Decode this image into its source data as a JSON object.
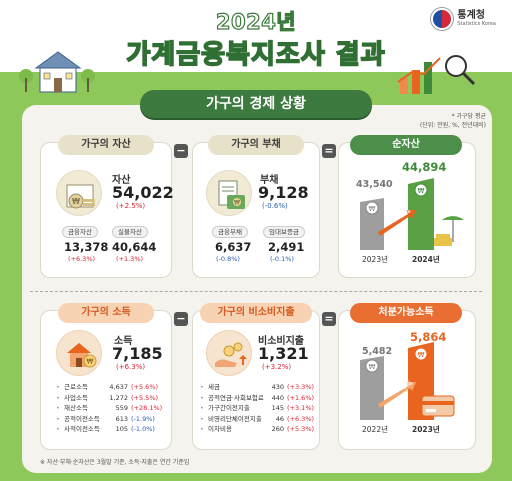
{
  "header": {
    "year": "2024년",
    "title": "가계금융복지조사 결과",
    "logo_text": "통계청",
    "logo_sub": "Statistics Korea"
  },
  "section": {
    "title": "가구의 경제 상황",
    "note_line1": "* 가구당 평균",
    "note_line2": "(단위: 만원, %, 전년대비)"
  },
  "assets": {
    "pill": "가구의 자산",
    "label": "자산",
    "value": "54,022",
    "change": "(+2.5%)",
    "sub": [
      {
        "tag": "금융자산",
        "value": "13,378",
        "change": "(+6.3%)"
      },
      {
        "tag": "실물자산",
        "value": "40,644",
        "change": "(+1.3%)"
      }
    ]
  },
  "debt": {
    "pill": "가구의 부채",
    "label": "부채",
    "value": "9,128",
    "change": "(-0.6%)",
    "sub": [
      {
        "tag": "금융부채",
        "value": "6,637",
        "change": "(-0.8%)"
      },
      {
        "tag": "임대보증금",
        "value": "2,491",
        "change": "(-0.1%)"
      }
    ]
  },
  "net_assets": {
    "pill": "순자산",
    "prev_value": "43,540",
    "curr_value": "44,894",
    "change_badge": "+3.1%",
    "prev_year": "2023년",
    "curr_year": "2024년"
  },
  "income": {
    "pill": "가구의 소득",
    "label": "소득",
    "value": "7,185",
    "change": "(+6.3%)",
    "items": [
      {
        "name": "근로소득",
        "value": "4,637",
        "change": "(+5.6%)"
      },
      {
        "name": "사업소득",
        "value": "1,272",
        "change": "(+5.5%)"
      },
      {
        "name": "재산소득",
        "value": "559",
        "change": "(+28.1%)"
      },
      {
        "name": "공적이전소득",
        "value": "613",
        "change": "(-1.9%)"
      },
      {
        "name": "사적이전소득",
        "value": "105",
        "change": "(-1.0%)"
      }
    ]
  },
  "nonconsumption": {
    "pill": "가구의 비소비지출",
    "label": "비소비지출",
    "value": "1,321",
    "change": "(+3.2%)",
    "items": [
      {
        "name": "세금",
        "value": "430",
        "change": "(+3.3%)"
      },
      {
        "name": "공적연금·사회보험료",
        "value": "440",
        "change": "(+1.6%)"
      },
      {
        "name": "가구간이전지출",
        "value": "145",
        "change": "(+3.1%)"
      },
      {
        "name": "비영리단체이전지출",
        "value": "46",
        "change": "(+6.3%)"
      },
      {
        "name": "이자비용",
        "value": "260",
        "change": "(+5.3%)"
      }
    ]
  },
  "disposable": {
    "pill": "처분가능소득",
    "prev_value": "5,482",
    "curr_value": "5,864",
    "change_badge": "+7.0%",
    "prev_year": "2022년",
    "curr_year": "2023년"
  },
  "operators": {
    "minus": "−",
    "equals": "="
  },
  "footnote": "※ 자산·부채·순자산은 3월말 기준, 소득·지출은 연간 기준임",
  "colors": {
    "accent_green": "#3d7a3f",
    "accent_orange": "#e86e32",
    "increase": "#dd2233",
    "decrease": "#2a5db0"
  }
}
